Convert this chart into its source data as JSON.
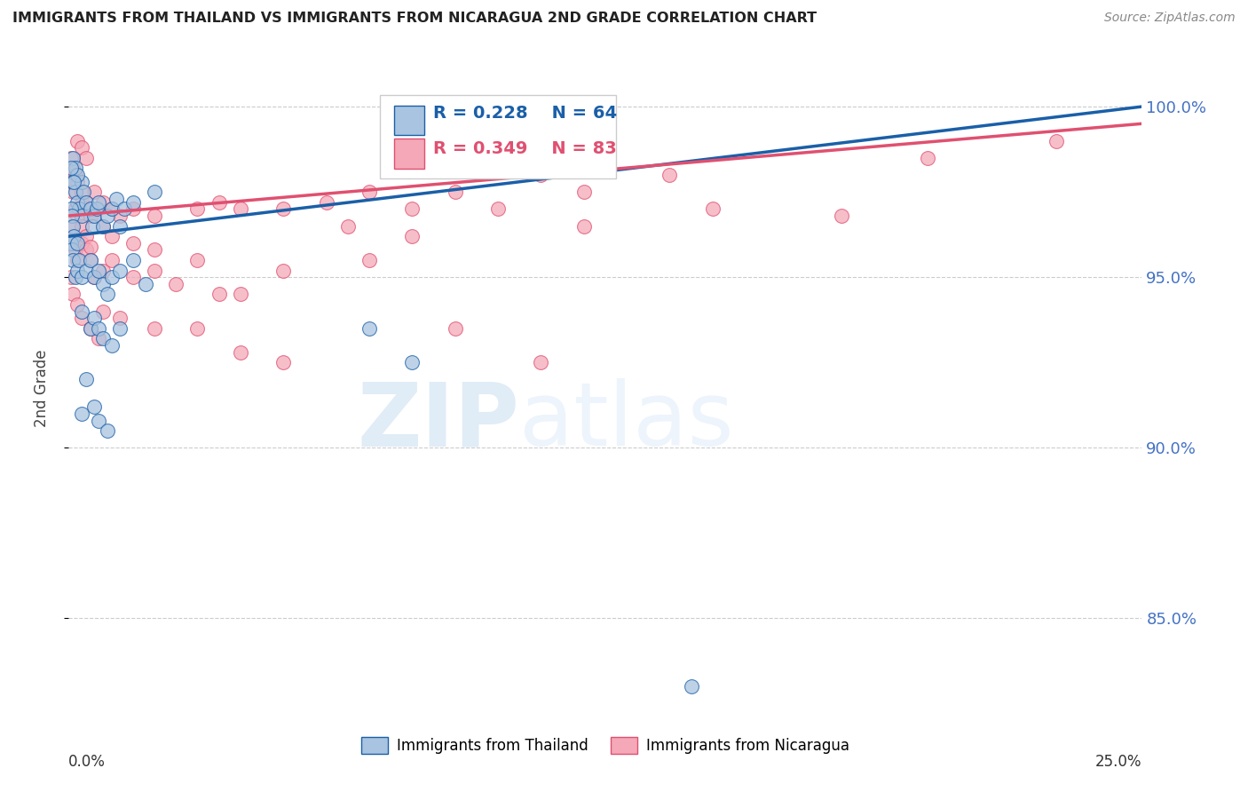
{
  "title": "IMMIGRANTS FROM THAILAND VS IMMIGRANTS FROM NICARAGUA 2ND GRADE CORRELATION CHART",
  "source": "Source: ZipAtlas.com",
  "ylabel": "2nd Grade",
  "yticks": [
    85.0,
    90.0,
    95.0,
    100.0
  ],
  "ytick_labels": [
    "85.0%",
    "90.0%",
    "95.0%",
    "100.0%"
  ],
  "xlim": [
    0.0,
    25.0
  ],
  "ylim": [
    82.0,
    101.5
  ],
  "legend_thailand": "Immigrants from Thailand",
  "legend_nicaragua": "Immigrants from Nicaragua",
  "R_thailand": 0.228,
  "N_thailand": 64,
  "R_nicaragua": 0.349,
  "N_nicaragua": 83,
  "color_thailand": "#a8c4e0",
  "color_nicaragua": "#f4a8b8",
  "line_color_thailand": "#1a5fa8",
  "line_color_nicaragua": "#e05070",
  "watermark_zip": "ZIP",
  "watermark_atlas": "atlas",
  "th_line_x": [
    0.0,
    25.0
  ],
  "th_line_y": [
    96.2,
    100.0
  ],
  "nic_line_x": [
    0.0,
    25.0
  ],
  "nic_line_y": [
    96.8,
    99.5
  ],
  "thailand_points": [
    [
      0.1,
      97.8
    ],
    [
      0.15,
      97.5
    ],
    [
      0.2,
      97.2
    ],
    [
      0.25,
      97.0
    ],
    [
      0.3,
      96.8
    ],
    [
      0.3,
      97.8
    ],
    [
      0.35,
      97.5
    ],
    [
      0.4,
      97.2
    ],
    [
      0.5,
      97.0
    ],
    [
      0.55,
      96.5
    ],
    [
      0.6,
      96.8
    ],
    [
      0.65,
      97.0
    ],
    [
      0.7,
      97.2
    ],
    [
      0.8,
      96.5
    ],
    [
      0.9,
      96.8
    ],
    [
      1.0,
      97.0
    ],
    [
      1.1,
      97.3
    ],
    [
      1.2,
      96.5
    ],
    [
      1.3,
      97.0
    ],
    [
      1.5,
      97.2
    ],
    [
      2.0,
      97.5
    ],
    [
      0.1,
      98.5
    ],
    [
      0.15,
      98.2
    ],
    [
      0.2,
      98.0
    ],
    [
      0.05,
      97.0
    ],
    [
      0.08,
      96.8
    ],
    [
      0.1,
      96.5
    ],
    [
      0.12,
      96.2
    ],
    [
      0.05,
      96.0
    ],
    [
      0.08,
      95.8
    ],
    [
      0.1,
      95.5
    ],
    [
      0.15,
      95.0
    ],
    [
      0.2,
      95.2
    ],
    [
      0.25,
      95.5
    ],
    [
      0.3,
      95.0
    ],
    [
      0.4,
      95.2
    ],
    [
      0.5,
      95.5
    ],
    [
      0.6,
      95.0
    ],
    [
      0.7,
      95.2
    ],
    [
      0.8,
      94.8
    ],
    [
      0.9,
      94.5
    ],
    [
      1.0,
      95.0
    ],
    [
      1.2,
      95.2
    ],
    [
      1.5,
      95.5
    ],
    [
      1.8,
      94.8
    ],
    [
      0.5,
      93.5
    ],
    [
      0.6,
      93.8
    ],
    [
      0.7,
      93.5
    ],
    [
      0.8,
      93.2
    ],
    [
      1.0,
      93.0
    ],
    [
      1.2,
      93.5
    ],
    [
      0.3,
      91.0
    ],
    [
      0.6,
      91.2
    ],
    [
      0.7,
      90.8
    ],
    [
      0.9,
      90.5
    ],
    [
      7.0,
      93.5
    ],
    [
      8.0,
      92.5
    ],
    [
      14.5,
      83.0
    ],
    [
      0.05,
      98.2
    ],
    [
      0.12,
      97.8
    ],
    [
      0.2,
      96.0
    ],
    [
      0.3,
      94.0
    ],
    [
      0.4,
      92.0
    ]
  ],
  "nicaragua_points": [
    [
      0.05,
      97.8
    ],
    [
      0.1,
      97.5
    ],
    [
      0.15,
      97.0
    ],
    [
      0.2,
      96.8
    ],
    [
      0.3,
      97.2
    ],
    [
      0.4,
      97.0
    ],
    [
      0.5,
      96.8
    ],
    [
      0.6,
      97.5
    ],
    [
      0.8,
      97.2
    ],
    [
      1.0,
      97.0
    ],
    [
      1.2,
      96.8
    ],
    [
      1.5,
      97.0
    ],
    [
      2.0,
      96.8
    ],
    [
      3.0,
      97.0
    ],
    [
      3.5,
      97.2
    ],
    [
      4.0,
      97.0
    ],
    [
      5.0,
      97.0
    ],
    [
      6.0,
      97.2
    ],
    [
      7.0,
      97.5
    ],
    [
      8.0,
      97.0
    ],
    [
      9.0,
      97.5
    ],
    [
      10.0,
      97.0
    ],
    [
      11.0,
      98.0
    ],
    [
      12.0,
      97.5
    ],
    [
      14.0,
      98.0
    ],
    [
      20.0,
      98.5
    ],
    [
      23.0,
      99.0
    ],
    [
      0.05,
      96.5
    ],
    [
      0.1,
      96.0
    ],
    [
      0.15,
      95.8
    ],
    [
      0.2,
      95.5
    ],
    [
      0.3,
      96.0
    ],
    [
      0.4,
      95.8
    ],
    [
      0.5,
      95.5
    ],
    [
      0.6,
      95.0
    ],
    [
      0.8,
      95.2
    ],
    [
      1.0,
      95.5
    ],
    [
      1.5,
      95.0
    ],
    [
      2.0,
      95.2
    ],
    [
      2.5,
      94.8
    ],
    [
      3.0,
      95.5
    ],
    [
      3.5,
      94.5
    ],
    [
      4.0,
      94.5
    ],
    [
      0.05,
      95.0
    ],
    [
      0.1,
      94.5
    ],
    [
      0.2,
      94.2
    ],
    [
      0.3,
      93.8
    ],
    [
      0.5,
      93.5
    ],
    [
      0.7,
      93.2
    ],
    [
      7.0,
      95.5
    ],
    [
      9.0,
      93.5
    ],
    [
      11.0,
      92.5
    ],
    [
      0.05,
      98.5
    ],
    [
      0.1,
      98.2
    ],
    [
      0.15,
      98.0
    ],
    [
      0.2,
      97.8
    ],
    [
      0.3,
      97.5
    ],
    [
      0.4,
      97.2
    ],
    [
      0.5,
      97.0
    ],
    [
      0.6,
      96.8
    ],
    [
      0.8,
      96.5
    ],
    [
      0.3,
      96.5
    ],
    [
      0.4,
      96.2
    ],
    [
      0.5,
      95.9
    ],
    [
      1.0,
      96.2
    ],
    [
      1.5,
      96.0
    ],
    [
      2.0,
      95.8
    ],
    [
      5.0,
      95.2
    ],
    [
      6.5,
      96.5
    ],
    [
      8.0,
      96.2
    ],
    [
      0.2,
      99.0
    ],
    [
      0.3,
      98.8
    ],
    [
      0.4,
      98.5
    ],
    [
      12.0,
      96.5
    ],
    [
      15.0,
      97.0
    ],
    [
      18.0,
      96.8
    ],
    [
      3.0,
      93.5
    ],
    [
      4.0,
      92.8
    ],
    [
      5.0,
      92.5
    ],
    [
      0.8,
      94.0
    ],
    [
      1.2,
      93.8
    ],
    [
      2.0,
      93.5
    ]
  ]
}
